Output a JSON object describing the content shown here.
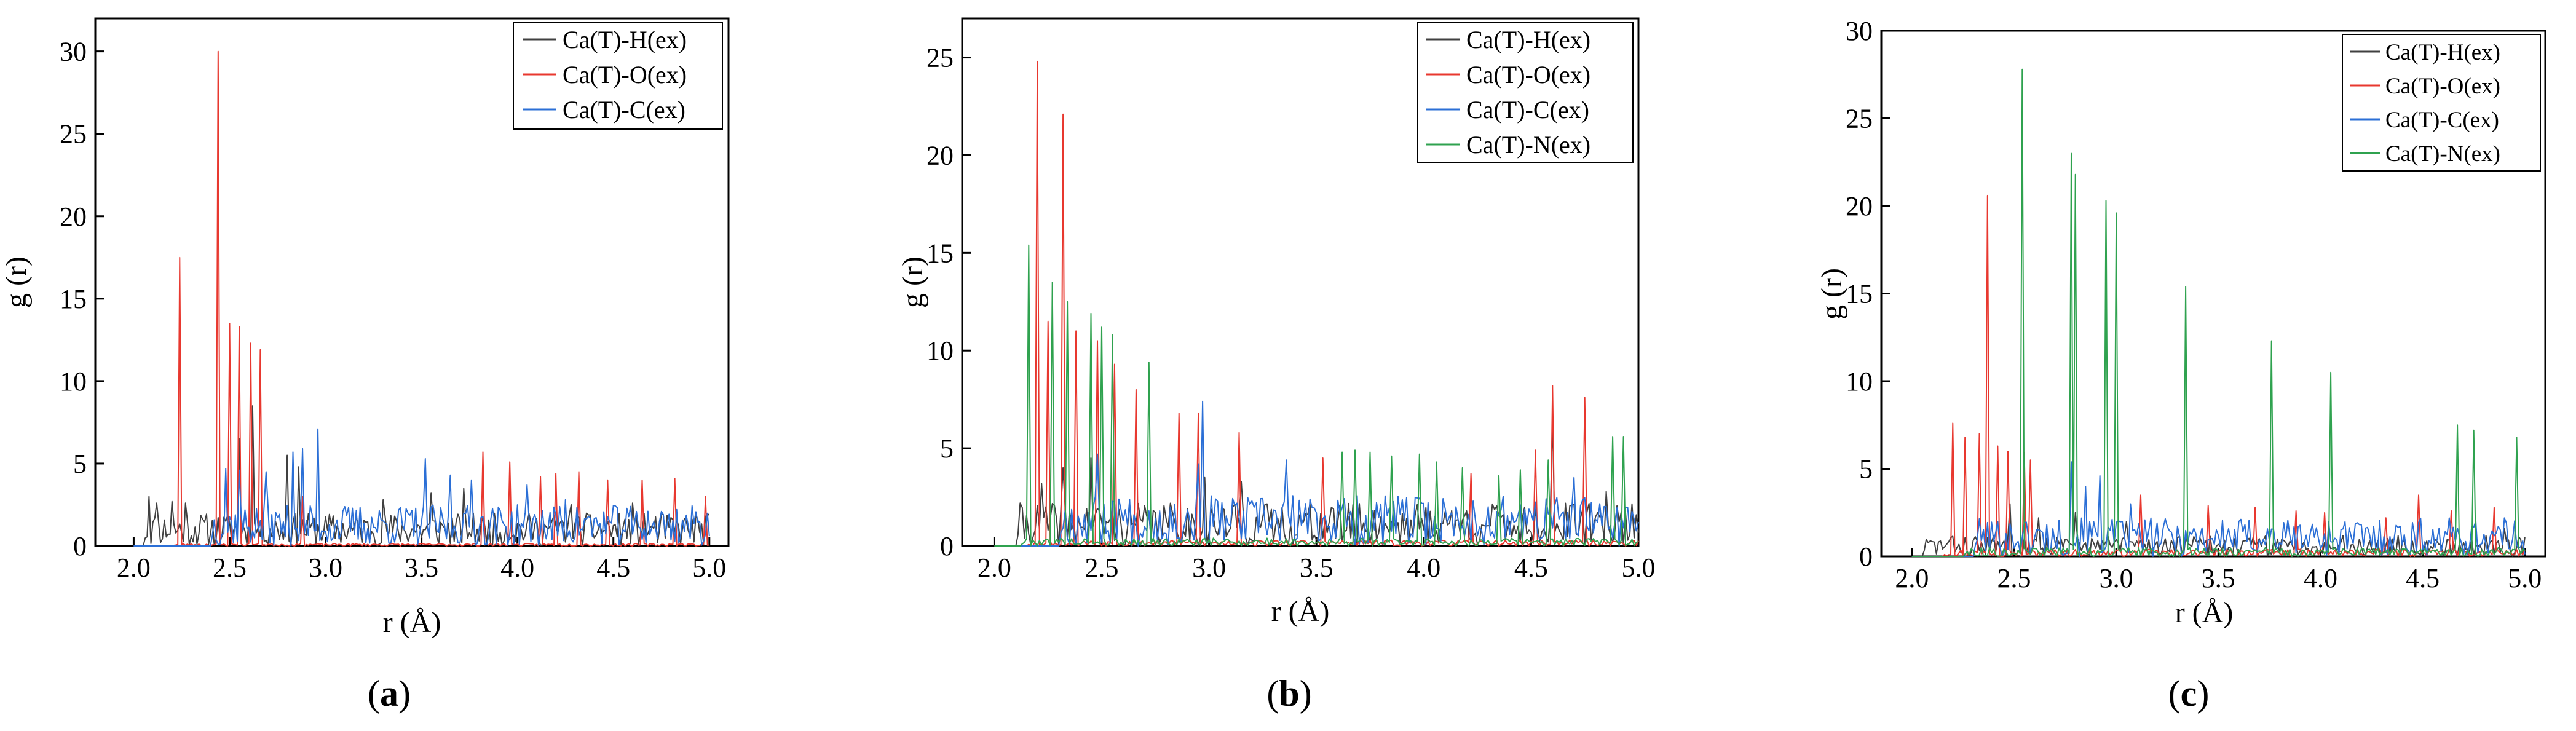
{
  "figure": {
    "panels_note": "three radial distribution function panels"
  },
  "chart_data": [
    {
      "type": "line",
      "panel_label": "a",
      "xlabel": "r (Å)",
      "ylabel": "g (r)",
      "xlim": [
        1.8,
        5.1
      ],
      "ylim": [
        0,
        32
      ],
      "xticks": [
        2.0,
        2.5,
        3.0,
        3.5,
        4.0,
        4.5,
        5.0
      ],
      "xtick_labels": [
        "2.0",
        "2.5",
        "3.0",
        "3.5",
        "4.0",
        "4.5",
        "5.0"
      ],
      "yticks": [
        0,
        5,
        10,
        15,
        20,
        25,
        30
      ],
      "ytick_labels": [
        "0",
        "5",
        "10",
        "15",
        "20",
        "25",
        "30"
      ],
      "legend": [
        "Ca(T)-H(ex)",
        "Ca(T)-O(ex)",
        "Ca(T)-C(ex)"
      ],
      "legend_position": "top-right",
      "series": [
        {
          "name": "Ca(T)-H(ex)",
          "color": "#404040",
          "seed": 11,
          "noise": 2.0,
          "noise_start": 2.05,
          "peaks": [
            [
              2.08,
              3.0
            ],
            [
              2.12,
              2.6
            ],
            [
              2.2,
              2.7
            ],
            [
              2.27,
              2.6
            ],
            [
              2.55,
              6.5
            ],
            [
              2.62,
              8.5
            ],
            [
              2.8,
              5.5
            ],
            [
              2.86,
              4.8
            ],
            [
              3.3,
              2.8
            ],
            [
              3.55,
              3.2
            ],
            [
              3.72,
              3.5
            ],
            [
              4.28,
              2.5
            ],
            [
              4.6,
              2.6
            ]
          ]
        },
        {
          "name": "Ca(T)-O(ex)",
          "color": "#e8382f",
          "seed": 23,
          "noise": 0.15,
          "noise_start": 2.2,
          "peaks": [
            [
              2.24,
              17.5
            ],
            [
              2.44,
              30.0
            ],
            [
              2.5,
              13.5
            ],
            [
              2.55,
              13.3
            ],
            [
              2.61,
              12.3
            ],
            [
              2.66,
              11.9
            ],
            [
              2.88,
              3.0
            ],
            [
              3.82,
              5.7
            ],
            [
              3.96,
              5.1
            ],
            [
              4.12,
              4.2
            ],
            [
              4.2,
              4.4
            ],
            [
              4.32,
              4.5
            ],
            [
              4.47,
              4.0
            ],
            [
              4.65,
              4.0
            ],
            [
              4.82,
              4.1
            ],
            [
              4.98,
              3.0
            ]
          ]
        },
        {
          "name": "Ca(T)-C(ex)",
          "color": "#2b6fd6",
          "seed": 37,
          "noise": 2.5,
          "noise_start": 2.4,
          "peaks": [
            [
              2.48,
              4.7
            ],
            [
              2.55,
              4.6
            ],
            [
              2.69,
              4.5
            ],
            [
              2.83,
              5.7
            ],
            [
              2.88,
              5.9
            ],
            [
              2.96,
              7.1
            ],
            [
              3.12,
              2.0
            ],
            [
              3.52,
              5.3
            ],
            [
              3.65,
              4.3
            ],
            [
              3.76,
              4.0
            ],
            [
              4.05,
              3.7
            ],
            [
              4.25,
              2.8
            ]
          ]
        }
      ]
    },
    {
      "type": "line",
      "panel_label": "b",
      "xlabel": "r (Å)",
      "ylabel": "g (r)",
      "xlim": [
        1.85,
        5.0
      ],
      "ylim": [
        0,
        27
      ],
      "xticks": [
        2.0,
        2.5,
        3.0,
        3.5,
        4.0,
        4.5,
        5.0
      ],
      "xtick_labels": [
        "2.0",
        "2.5",
        "3.0",
        "3.5",
        "4.0",
        "4.5",
        "5.0"
      ],
      "yticks": [
        0,
        5,
        10,
        15,
        20,
        25
      ],
      "ytick_labels": [
        "0",
        "5",
        "10",
        "15",
        "20",
        "25"
      ],
      "legend": [
        "Ca(T)-H(ex)",
        "Ca(T)-O(ex)",
        "Ca(T)-C(ex)",
        "Ca(T)-N(ex)"
      ],
      "legend_position": "top-right",
      "series": [
        {
          "name": "Ca(T)-H(ex)",
          "color": "#404040",
          "seed": 41,
          "noise": 2.2,
          "noise_start": 2.1,
          "peaks": [
            [
              2.22,
              3.2
            ],
            [
              2.32,
              4.0
            ],
            [
              2.45,
              4.5
            ],
            [
              2.98,
              3.5
            ],
            [
              3.15,
              3.3
            ],
            [
              4.6,
              6.6
            ],
            [
              4.85,
              2.8
            ]
          ]
        },
        {
          "name": "Ca(T)-O(ex)",
          "color": "#e8382f",
          "seed": 53,
          "noise": 0.3,
          "noise_start": 2.15,
          "peaks": [
            [
              2.2,
              24.8
            ],
            [
              2.25,
              11.5
            ],
            [
              2.32,
              22.1
            ],
            [
              2.38,
              11.0
            ],
            [
              2.48,
              10.5
            ],
            [
              2.56,
              9.3
            ],
            [
              2.66,
              8.0
            ],
            [
              2.86,
              6.8
            ],
            [
              2.95,
              6.8
            ],
            [
              3.14,
              5.8
            ],
            [
              3.53,
              4.5
            ],
            [
              4.22,
              3.7
            ],
            [
              4.52,
              4.9
            ],
            [
              4.6,
              8.2
            ],
            [
              4.75,
              7.6
            ]
          ]
        },
        {
          "name": "Ca(T)-C(ex)",
          "color": "#2b6fd6",
          "seed": 67,
          "noise": 2.6,
          "noise_start": 2.3,
          "peaks": [
            [
              2.48,
              4.7
            ],
            [
              2.58,
              2.4
            ],
            [
              2.95,
              4.2
            ],
            [
              2.97,
              7.4
            ],
            [
              3.36,
              4.4
            ],
            [
              4.7,
              3.5
            ]
          ]
        },
        {
          "name": "Ca(T)-N(ex)",
          "color": "#2fa24f",
          "seed": 79,
          "noise": 0.4,
          "noise_start": 2.12,
          "peaks": [
            [
              2.16,
              15.4
            ],
            [
              2.27,
              13.5
            ],
            [
              2.34,
              12.5
            ],
            [
              2.45,
              11.9
            ],
            [
              2.5,
              11.2
            ],
            [
              2.55,
              10.8
            ],
            [
              2.72,
              9.4
            ],
            [
              3.62,
              4.8
            ],
            [
              3.68,
              4.9
            ],
            [
              3.75,
              4.8
            ],
            [
              3.85,
              4.6
            ],
            [
              3.98,
              4.7
            ],
            [
              4.06,
              4.3
            ],
            [
              4.18,
              4.0
            ],
            [
              4.35,
              3.6
            ],
            [
              4.45,
              3.9
            ],
            [
              4.58,
              4.4
            ],
            [
              4.88,
              5.6
            ],
            [
              4.93,
              5.6
            ]
          ]
        }
      ]
    },
    {
      "type": "line",
      "panel_label": "c",
      "xlabel": "r (Å)",
      "ylabel": "g (r)",
      "xlim": [
        1.85,
        5.1
      ],
      "ylim": [
        0,
        30
      ],
      "xticks": [
        2.0,
        2.5,
        3.0,
        3.5,
        4.0,
        4.5,
        5.0
      ],
      "xtick_labels": [
        "2.0",
        "2.5",
        "3.0",
        "3.5",
        "4.0",
        "4.5",
        "5.0"
      ],
      "yticks": [
        0,
        5,
        10,
        15,
        20,
        25,
        30
      ],
      "ytick_labels": [
        "0",
        "5",
        "10",
        "15",
        "20",
        "25",
        "30"
      ],
      "legend": [
        "Ca(T)-H(ex)",
        "Ca(T)-O(ex)",
        "Ca(T)-C(ex)",
        "Ca(T)-N(ex)"
      ],
      "legend_position": "top-right",
      "series": [
        {
          "name": "Ca(T)-H(ex)",
          "color": "#404040",
          "seed": 83,
          "noise": 1.2,
          "noise_start": 2.05,
          "peaks": [
            [
              2.48,
              3.0
            ],
            [
              2.62,
              2.2
            ],
            [
              2.8,
              2.5
            ],
            [
              3.05,
              2.0
            ],
            [
              4.9,
              1.6
            ]
          ]
        },
        {
          "name": "Ca(T)-O(ex)",
          "color": "#e8382f",
          "seed": 97,
          "noise": 0.4,
          "noise_start": 2.15,
          "peaks": [
            [
              2.2,
              7.6
            ],
            [
              2.26,
              6.8
            ],
            [
              2.33,
              7.0
            ],
            [
              2.37,
              20.6
            ],
            [
              2.42,
              6.3
            ],
            [
              2.47,
              6.0
            ],
            [
              2.55,
              5.9
            ],
            [
              2.58,
              5.5
            ],
            [
              3.12,
              3.5
            ],
            [
              3.45,
              2.9
            ],
            [
              3.68,
              2.8
            ],
            [
              3.88,
              2.6
            ],
            [
              4.02,
              2.5
            ],
            [
              4.32,
              2.2
            ],
            [
              4.48,
              3.5
            ],
            [
              4.64,
              2.6
            ],
            [
              4.85,
              2.8
            ]
          ]
        },
        {
          "name": "Ca(T)-C(ex)",
          "color": "#2b6fd6",
          "seed": 101,
          "noise": 2.2,
          "noise_start": 2.3,
          "peaks": [
            [
              2.78,
              5.4
            ],
            [
              2.85,
              4.0
            ],
            [
              2.92,
              4.6
            ],
            [
              3.07,
              3.0
            ]
          ]
        },
        {
          "name": "Ca(T)-N(ex)",
          "color": "#2fa24f",
          "seed": 113,
          "noise": 0.5,
          "noise_start": 2.25,
          "peaks": [
            [
              2.54,
              27.8
            ],
            [
              2.78,
              23.0
            ],
            [
              2.8,
              21.8
            ],
            [
              2.95,
              20.3
            ],
            [
              3.0,
              19.6
            ],
            [
              3.34,
              15.4
            ],
            [
              3.76,
              12.3
            ],
            [
              4.05,
              10.5
            ],
            [
              4.67,
              7.5
            ],
            [
              4.75,
              7.2
            ],
            [
              4.96,
              6.8
            ]
          ]
        }
      ]
    }
  ]
}
